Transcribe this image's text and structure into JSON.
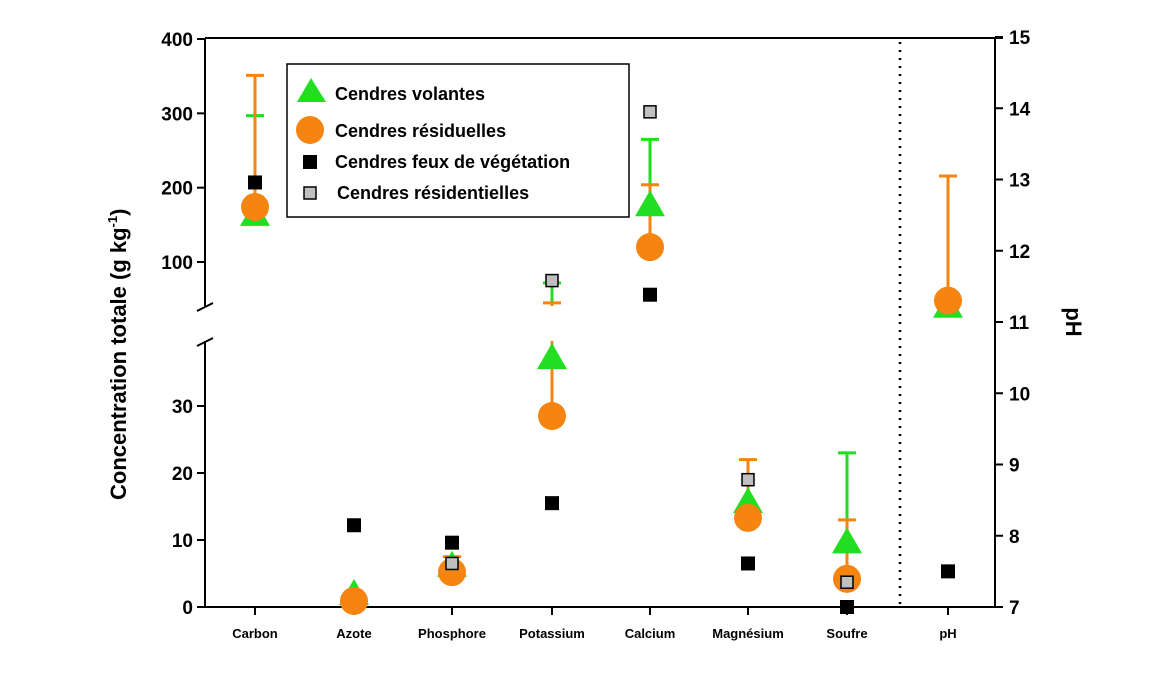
{
  "chart_data": {
    "type": "scatter",
    "title": "",
    "categories": [
      "Carbon",
      "Azote",
      "Phosphore",
      "Potassium",
      "Calcium",
      "Magnésium",
      "Soufre",
      "pH"
    ],
    "ylabel_left": "Concentration totale (g kg",
    "ylabel_left_sup": "-1",
    "ylabel_left_close": ")",
    "ylabel_right": "pH",
    "y_left": {
      "broken": true,
      "lower_range": [
        0,
        40
      ],
      "upper_range": [
        40,
        400
      ],
      "lower_ticks": [
        "0",
        "10",
        "20",
        "30"
      ],
      "upper_ticks": [
        "100",
        "200",
        "300",
        "400"
      ]
    },
    "y_right": {
      "range": [
        7,
        15
      ],
      "ticks": [
        "7",
        "8",
        "9",
        "10",
        "11",
        "12",
        "13",
        "14",
        "15"
      ]
    },
    "separator_before": "pH",
    "legend": {
      "placement": "top-left",
      "entries": [
        "Cendres volantes",
        "Cendres résiduelles",
        "Cendres feux de végétation",
        "Cendres résidentielles"
      ]
    },
    "series": [
      {
        "name": "Cendres volantes",
        "marker": "triangle",
        "color": "#22dd22",
        "values": [
          162,
          1.8,
          6.0,
          37,
          175,
          15.5,
          9.5,
          11.2
        ],
        "error_upper": [
          297,
          null,
          null,
          72,
          265,
          null,
          23,
          null
        ]
      },
      {
        "name": "Cendres résiduelles",
        "marker": "circle",
        "color": "#f58410",
        "values": [
          174,
          0.9,
          5.2,
          28.5,
          120,
          13.3,
          4.2,
          11.3
        ],
        "error_upper": [
          351,
          null,
          7.5,
          45,
          204,
          22,
          13,
          13.05
        ]
      },
      {
        "name": "Cendres feux de végétation",
        "marker": "square",
        "color": "#000000",
        "values": [
          207,
          12.2,
          9.6,
          15.5,
          56,
          6.5,
          0,
          7.5
        ],
        "error_upper": [
          null,
          null,
          null,
          null,
          null,
          null,
          null,
          null
        ]
      },
      {
        "name": "Cendres résidentielles",
        "marker": "square",
        "color": "#c0c0c0",
        "values": [
          null,
          null,
          6.5,
          75,
          302,
          19,
          3.7,
          null
        ],
        "error_upper": [
          null,
          null,
          null,
          null,
          null,
          null,
          null,
          null
        ]
      }
    ]
  }
}
